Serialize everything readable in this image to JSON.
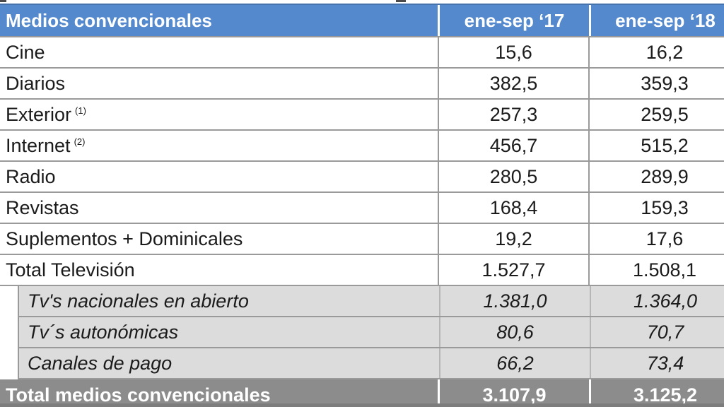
{
  "table": {
    "header": {
      "title": "Medios convencionales",
      "col_2017": "ene-sep ‘17",
      "col_2018": "ene-sep ‘18"
    },
    "rows": [
      {
        "label": "Cine",
        "y17": "15,6",
        "y18": "16,2"
      },
      {
        "label": "Diarios",
        "y17": "382,5",
        "y18": "359,3"
      },
      {
        "label": "Exterior",
        "note": "(1)",
        "y17": "257,3",
        "y18": "259,5"
      },
      {
        "label": "Internet",
        "note": "(2)",
        "y17": "456,7",
        "y18": "515,2"
      },
      {
        "label": "Radio",
        "y17": "280,5",
        "y18": "289,9"
      },
      {
        "label": "Revistas",
        "y17": "168,4",
        "y18": "159,3"
      },
      {
        "label": "Suplementos + Dominicales",
        "y17": "19,2",
        "y18": "17,6"
      },
      {
        "label": "Total Televisión",
        "y17": "1.527,7",
        "y18": "1.508,1"
      }
    ],
    "sub_rows": [
      {
        "label": "Tv's nacionales en abierto",
        "y17": "1.381,0",
        "y18": "1.364,0"
      },
      {
        "label": "Tv´s autonómicas",
        "y17": "80,6",
        "y18": "70,7"
      },
      {
        "label": "Canales de pago",
        "y17": "66,2",
        "y18": "73,4"
      }
    ],
    "total_row": {
      "label": "Total medios convencionales",
      "y17": "3.107,9",
      "y18": "3.125,2"
    }
  },
  "chart_data": {
    "type": "table",
    "title": "Medios convencionales",
    "columns": [
      "Medios convencionales",
      "ene-sep ‘17",
      "ene-sep ‘18"
    ],
    "rows": [
      [
        "Cine",
        15.6,
        16.2
      ],
      [
        "Diarios",
        382.5,
        359.3
      ],
      [
        "Exterior (1)",
        257.3,
        259.5
      ],
      [
        "Internet (2)",
        456.7,
        515.2
      ],
      [
        "Radio",
        280.5,
        289.9
      ],
      [
        "Revistas",
        168.4,
        159.3
      ],
      [
        "Suplementos + Dominicales",
        19.2,
        17.6
      ],
      [
        "Total Televisión",
        1527.7,
        1508.1
      ],
      [
        "Tv's nacionales en abierto",
        1381.0,
        1364.0
      ],
      [
        "Tv´s autonómicas",
        80.6,
        70.7
      ],
      [
        "Canales de pago",
        66.2,
        73.4
      ],
      [
        "Total medios convencionales",
        3107.9,
        3125.2
      ]
    ],
    "number_format": "es-ES (decimal comma, thousands dot)",
    "layout_hints": "sub-rows of Total Televisión are indented, italic, gray background; final total row dark gray with white bold text; header row blue with white bold text"
  },
  "colors": {
    "header_blue": "#5489CE",
    "subrow_gray": "#DCDCDC",
    "total_gray": "#8C8C8C",
    "border_gray": "#9A9A9A",
    "text_black": "#1B1B1B",
    "text_white": "#FFFFFF"
  }
}
